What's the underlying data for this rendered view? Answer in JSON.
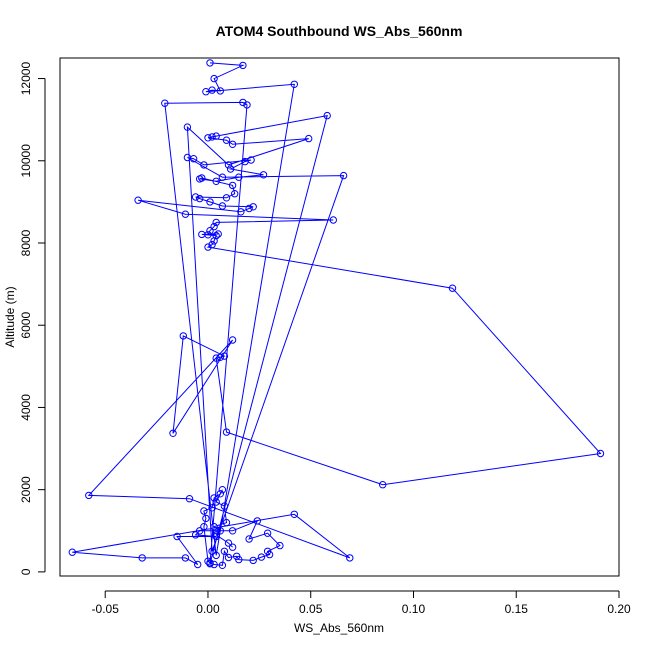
{
  "chart_data": {
    "type": "line",
    "title": "ATOM4 Southbound WS_Abs_560nm",
    "xlabel": "WS_Abs_560nm",
    "ylabel": "Altitude (m)",
    "xlim": [
      -0.072,
      0.2
    ],
    "ylim": [
      -100,
      12500
    ],
    "x_ticks": [
      -0.05,
      0.0,
      0.05,
      0.1,
      0.15,
      0.2
    ],
    "x_tick_labels": [
      "-0.05",
      "0.00",
      "0.05",
      "0.10",
      "0.15",
      "0.20"
    ],
    "y_ticks": [
      0,
      2000,
      4000,
      6000,
      8000,
      10000,
      12000
    ],
    "y_tick_labels": [
      "0",
      "2000",
      "4000",
      "6000",
      "8000",
      "10000",
      "12000"
    ],
    "grid": false,
    "series": [
      {
        "color": "#0000ff",
        "marker": "open-circle",
        "points": [
          [
            0.001,
            12380
          ],
          [
            0.017,
            12320
          ],
          [
            0.003,
            12000
          ],
          [
            0.006,
            11700
          ],
          [
            0.002,
            11720
          ],
          [
            -0.001,
            11680
          ],
          [
            0.042,
            11860
          ],
          [
            0.004,
            400
          ],
          [
            -0.021,
            11400
          ],
          [
            0.017,
            11420
          ],
          [
            0.019,
            11360
          ],
          [
            0.001,
            200
          ],
          [
            0.058,
            11100
          ],
          [
            0.004,
            10600
          ],
          [
            0.002,
            10580
          ],
          [
            0.0,
            10560
          ],
          [
            0.009,
            10500
          ],
          [
            0.012,
            10400
          ],
          [
            0.049,
            10540
          ],
          [
            0.01,
            9900
          ],
          [
            -0.01,
            10820
          ],
          [
            0.002,
            500
          ],
          [
            0.066,
            9640
          ],
          [
            0.007,
            9600
          ],
          [
            -0.01,
            10080
          ],
          [
            -0.007,
            10050
          ],
          [
            -0.002,
            9900
          ],
          [
            0.021,
            10020
          ],
          [
            0.018,
            9980
          ],
          [
            0.011,
            9800
          ],
          [
            0.027,
            9660
          ],
          [
            0.015,
            9600
          ],
          [
            0.004,
            9500
          ],
          [
            -0.004,
            9560
          ],
          [
            -0.003,
            9580
          ],
          [
            0.012,
            9400
          ],
          [
            0.013,
            9200
          ],
          [
            0.009,
            9100
          ],
          [
            -0.006,
            9120
          ],
          [
            -0.004,
            9080
          ],
          [
            0.001,
            9000
          ],
          [
            0.007,
            8900
          ],
          [
            0.022,
            8880
          ],
          [
            0.02,
            8840
          ],
          [
            0.016,
            8760
          ],
          [
            -0.034,
            9040
          ],
          [
            -0.011,
            8700
          ],
          [
            0.061,
            8560
          ],
          [
            0.004,
            8500
          ],
          [
            0.003,
            8400
          ],
          [
            0.001,
            8300
          ],
          [
            0.0,
            8200
          ],
          [
            0.005,
            8220
          ],
          [
            -0.003,
            8210
          ],
          [
            0.004,
            8180
          ],
          [
            0.003,
            8050
          ],
          [
            0.002,
            7960
          ],
          [
            0.0,
            7900
          ],
          [
            0.119,
            6900
          ],
          [
            0.191,
            2880
          ],
          [
            0.085,
            2120
          ],
          [
            0.009,
            3400
          ],
          [
            0.004,
            5200
          ],
          [
            0.006,
            5220
          ],
          [
            0.008,
            5250
          ],
          [
            -0.012,
            5740
          ],
          [
            -0.017,
            3370
          ],
          [
            0.012,
            5640
          ],
          [
            -0.058,
            1860
          ],
          [
            -0.009,
            1780
          ],
          [
            0.069,
            340
          ],
          [
            0.042,
            1400
          ],
          [
            -0.066,
            480
          ],
          [
            -0.032,
            340
          ],
          [
            -0.011,
            340
          ],
          [
            -0.005,
            180
          ],
          [
            -0.015,
            860
          ],
          [
            0.004,
            860
          ],
          [
            -0.006,
            900
          ],
          [
            -0.004,
            1000
          ],
          [
            0.012,
            1000
          ],
          [
            0.024,
            1240
          ],
          [
            0.02,
            800
          ],
          [
            0.029,
            940
          ],
          [
            0.035,
            640
          ],
          [
            0.029,
            500
          ],
          [
            0.03,
            420
          ],
          [
            0.026,
            360
          ],
          [
            0.022,
            280
          ],
          [
            0.015,
            300
          ],
          [
            0.014,
            380
          ],
          [
            0.01,
            350
          ],
          [
            0.008,
            500
          ],
          [
            0.007,
            160
          ],
          [
            0.003,
            180
          ],
          [
            0.001,
            220
          ],
          [
            0.0,
            260
          ],
          [
            -0.002,
            1100
          ],
          [
            -0.001,
            1300
          ],
          [
            -0.002,
            1480
          ],
          [
            0.002,
            1560
          ],
          [
            0.003,
            1800
          ],
          [
            0.006,
            1900
          ],
          [
            0.007,
            2000
          ],
          [
            0.004,
            1700
          ],
          [
            0.008,
            1600
          ],
          [
            0.009,
            1200
          ],
          [
            0.003,
            1100
          ],
          [
            0.006,
            1000
          ],
          [
            0.004,
            900
          ],
          [
            0.01,
            700
          ],
          [
            0.012,
            600
          ]
        ]
      }
    ]
  }
}
